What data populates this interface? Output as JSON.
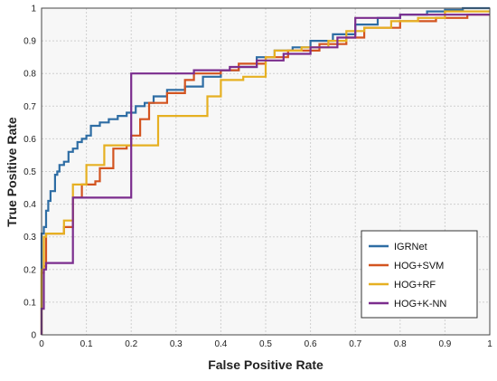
{
  "chart_data": {
    "type": "line",
    "title": "",
    "xlabel": "False Positive Rate",
    "ylabel": "True Positive Rate",
    "xlim": [
      0,
      1
    ],
    "ylim": [
      0,
      1
    ],
    "xticks": [
      "0",
      "0.1",
      "0.2",
      "0.3",
      "0.4",
      "0.5",
      "0.6",
      "0.7",
      "0.8",
      "0.9",
      "1"
    ],
    "yticks": [
      "0",
      "0.1",
      "0.2",
      "0.3",
      "0.4",
      "0.5",
      "0.6",
      "0.7",
      "0.8",
      "0.9",
      "1"
    ],
    "grid": true,
    "legend_position": "bottom-right",
    "series": [
      {
        "name": "IGRNet",
        "color": "#2e6da4",
        "x": [
          0,
          0,
          0.005,
          0.005,
          0.01,
          0.01,
          0.015,
          0.015,
          0.02,
          0.02,
          0.03,
          0.03,
          0.035,
          0.035,
          0.04,
          0.04,
          0.05,
          0.05,
          0.06,
          0.06,
          0.07,
          0.07,
          0.08,
          0.08,
          0.09,
          0.09,
          0.1,
          0.1,
          0.11,
          0.11,
          0.13,
          0.13,
          0.15,
          0.15,
          0.17,
          0.17,
          0.19,
          0.19,
          0.21,
          0.21,
          0.23,
          0.23,
          0.25,
          0.25,
          0.28,
          0.28,
          0.32,
          0.32,
          0.36,
          0.36,
          0.4,
          0.4,
          0.44,
          0.44,
          0.48,
          0.48,
          0.52,
          0.52,
          0.56,
          0.56,
          0.6,
          0.6,
          0.65,
          0.65,
          0.7,
          0.7,
          0.75,
          0.75,
          0.8,
          0.8,
          0.86,
          0.86,
          0.9,
          0.9,
          0.94,
          0.94,
          1
        ],
        "y": [
          0,
          0.31,
          0.31,
          0.33,
          0.33,
          0.38,
          0.38,
          0.41,
          0.41,
          0.44,
          0.44,
          0.49,
          0.49,
          0.5,
          0.5,
          0.52,
          0.52,
          0.53,
          0.53,
          0.56,
          0.56,
          0.57,
          0.57,
          0.59,
          0.59,
          0.6,
          0.6,
          0.61,
          0.61,
          0.64,
          0.64,
          0.65,
          0.65,
          0.66,
          0.66,
          0.67,
          0.67,
          0.68,
          0.68,
          0.7,
          0.7,
          0.71,
          0.71,
          0.73,
          0.73,
          0.75,
          0.75,
          0.76,
          0.76,
          0.79,
          0.79,
          0.81,
          0.81,
          0.82,
          0.82,
          0.85,
          0.85,
          0.87,
          0.87,
          0.88,
          0.88,
          0.9,
          0.9,
          0.92,
          0.92,
          0.95,
          0.95,
          0.97,
          0.97,
          0.98,
          0.98,
          0.99,
          0.99,
          0.995,
          0.995,
          1.0,
          1.0
        ]
      },
      {
        "name": "HOG+SVM",
        "color": "#d35420",
        "x": [
          0,
          0,
          0.005,
          0.005,
          0.01,
          0.01,
          0.05,
          0.05,
          0.07,
          0.07,
          0.09,
          0.09,
          0.12,
          0.12,
          0.13,
          0.13,
          0.16,
          0.16,
          0.19,
          0.19,
          0.2,
          0.2,
          0.22,
          0.22,
          0.24,
          0.24,
          0.28,
          0.28,
          0.32,
          0.32,
          0.34,
          0.34,
          0.4,
          0.4,
          0.44,
          0.44,
          0.5,
          0.5,
          0.55,
          0.55,
          0.62,
          0.62,
          0.68,
          0.68,
          0.72,
          0.72,
          0.8,
          0.8,
          0.88,
          0.88,
          0.95,
          0.95,
          1
        ],
        "y": [
          0,
          0.19,
          0.19,
          0.21,
          0.21,
          0.31,
          0.31,
          0.33,
          0.33,
          0.42,
          0.42,
          0.46,
          0.46,
          0.47,
          0.47,
          0.51,
          0.51,
          0.57,
          0.57,
          0.58,
          0.58,
          0.61,
          0.61,
          0.66,
          0.66,
          0.71,
          0.71,
          0.74,
          0.74,
          0.78,
          0.78,
          0.8,
          0.8,
          0.81,
          0.81,
          0.83,
          0.83,
          0.85,
          0.85,
          0.87,
          0.87,
          0.89,
          0.89,
          0.91,
          0.91,
          0.94,
          0.94,
          0.96,
          0.96,
          0.97,
          0.97,
          0.98,
          0.98
        ]
      },
      {
        "name": "HOG+RF",
        "color": "#e6b022",
        "x": [
          0,
          0,
          0.005,
          0.005,
          0.01,
          0.01,
          0.05,
          0.05,
          0.07,
          0.07,
          0.1,
          0.1,
          0.14,
          0.14,
          0.2,
          0.2,
          0.26,
          0.26,
          0.28,
          0.28,
          0.35,
          0.35,
          0.37,
          0.37,
          0.4,
          0.4,
          0.45,
          0.45,
          0.5,
          0.5,
          0.52,
          0.52,
          0.58,
          0.58,
          0.64,
          0.64,
          0.68,
          0.68,
          0.72,
          0.72,
          0.78,
          0.78,
          0.84,
          0.84,
          0.9,
          0.9,
          1
        ],
        "y": [
          0,
          0.2,
          0.2,
          0.3,
          0.3,
          0.31,
          0.31,
          0.35,
          0.35,
          0.46,
          0.46,
          0.52,
          0.52,
          0.58,
          0.58,
          0.58,
          0.58,
          0.67,
          0.67,
          0.67,
          0.67,
          0.67,
          0.67,
          0.73,
          0.73,
          0.78,
          0.78,
          0.79,
          0.79,
          0.85,
          0.85,
          0.87,
          0.87,
          0.88,
          0.88,
          0.9,
          0.9,
          0.93,
          0.93,
          0.94,
          0.94,
          0.96,
          0.96,
          0.97,
          0.97,
          0.99,
          0.99
        ]
      },
      {
        "name": "HOG+K-NN",
        "color": "#7b2d8e",
        "x": [
          0,
          0,
          0.005,
          0.005,
          0.01,
          0.01,
          0.07,
          0.07,
          0.1,
          0.1,
          0.14,
          0.14,
          0.2,
          0.2,
          0.22,
          0.22,
          0.24,
          0.24,
          0.28,
          0.28,
          0.34,
          0.34,
          0.42,
          0.42,
          0.48,
          0.48,
          0.54,
          0.54,
          0.6,
          0.6,
          0.66,
          0.66,
          0.7,
          0.7,
          0.72,
          0.72,
          0.8,
          0.8,
          0.9,
          0.9,
          1
        ],
        "y": [
          0,
          0.08,
          0.08,
          0.2,
          0.2,
          0.22,
          0.22,
          0.42,
          0.42,
          0.42,
          0.42,
          0.42,
          0.42,
          0.8,
          0.8,
          0.8,
          0.8,
          0.8,
          0.8,
          0.8,
          0.8,
          0.81,
          0.81,
          0.82,
          0.82,
          0.84,
          0.84,
          0.86,
          0.86,
          0.88,
          0.88,
          0.91,
          0.91,
          0.97,
          0.97,
          0.97,
          0.97,
          0.98,
          0.98,
          0.98,
          0.98
        ]
      }
    ]
  }
}
